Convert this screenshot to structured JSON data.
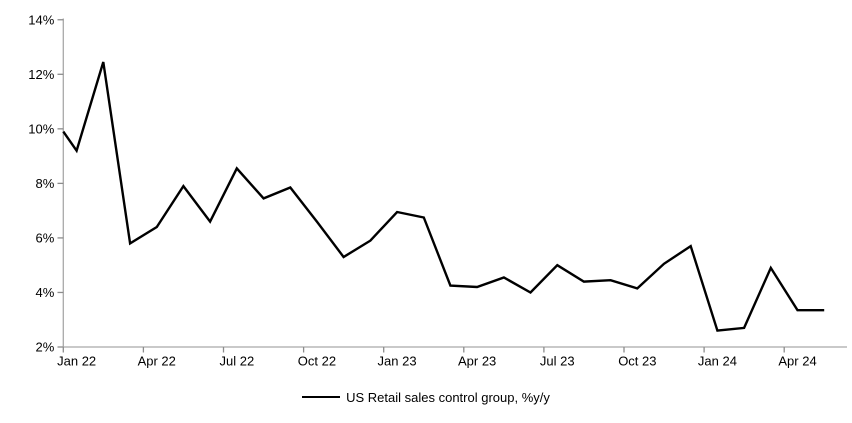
{
  "chart_data": {
    "type": "line",
    "title": "",
    "legend_label": "US Retail sales control group, %y/y",
    "legend_position": "bottom-center",
    "grid": "off",
    "ylim": [
      2,
      14
    ],
    "y_tick_step": 2,
    "y_tick_labels": [
      "2%",
      "4%",
      "6%",
      "8%",
      "10%",
      "12%",
      "14%"
    ],
    "x_tick_labels": [
      "Jan 22",
      "Apr 22",
      "Jul 22",
      "Oct 22",
      "Jan 23",
      "Apr 23",
      "Jul 23",
      "Oct 23",
      "Jan 24",
      "Apr 24"
    ],
    "x_labeled_month_indices": [
      0,
      3,
      6,
      9,
      12,
      15,
      18,
      21,
      24,
      27
    ],
    "categories": [
      "Jan 22",
      "Feb 22",
      "Mar 22",
      "Apr 22",
      "May 22",
      "Jun 22",
      "Jul 22",
      "Aug 22",
      "Sep 22",
      "Oct 22",
      "Nov 22",
      "Dec 22",
      "Jan 23",
      "Feb 23",
      "Mar 23",
      "Apr 23",
      "May 23",
      "Jun 23",
      "Jul 23",
      "Aug 23",
      "Sep 23",
      "Oct 23",
      "Nov 23",
      "Dec 23",
      "Jan 24",
      "Feb 24",
      "Mar 24",
      "Apr 24",
      "May 24"
    ],
    "series": [
      {
        "name": "US Retail sales control group, %y/y",
        "color": "#000000",
        "values": [
          9.2,
          12.45,
          5.8,
          6.4,
          7.9,
          6.6,
          8.55,
          7.45,
          7.85,
          6.6,
          5.3,
          5.9,
          6.95,
          6.75,
          4.25,
          4.2,
          4.55,
          4.0,
          5.0,
          4.4,
          4.45,
          4.15,
          5.05,
          5.7,
          2.6,
          2.7,
          4.9,
          3.35,
          3.35
        ]
      }
    ],
    "left_edge_entry_value": 9.9,
    "colors": {
      "series_line": "#000000",
      "axis": "#a9a9a9",
      "tick": "#8c8c8c",
      "text": "#000000",
      "background": "#ffffff"
    }
  }
}
